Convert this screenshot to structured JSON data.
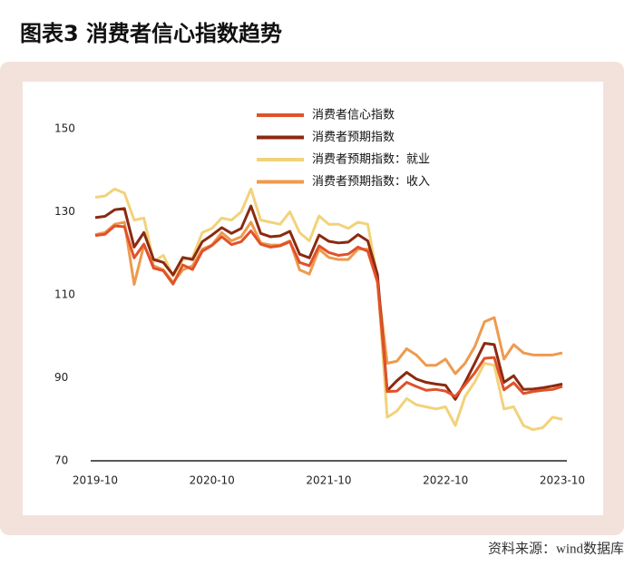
{
  "chart_data": {
    "type": "line",
    "title": "图表3  消费者信心指数趋势",
    "source": "资料来源：wind数据库",
    "categories": [
      "2019-10",
      null,
      null,
      null,
      null,
      null,
      null,
      null,
      null,
      null,
      null,
      null,
      "2020-10",
      null,
      null,
      null,
      null,
      null,
      null,
      null,
      null,
      null,
      null,
      null,
      "2021-10",
      null,
      null,
      null,
      null,
      null,
      null,
      null,
      null,
      null,
      null,
      null,
      "2022-10",
      null,
      null,
      null,
      null,
      null,
      null,
      null,
      null,
      null,
      null,
      null,
      "2023-10"
    ],
    "ylim": [
      70,
      150
    ],
    "yticks": [
      70,
      90,
      110,
      130,
      150
    ],
    "legend": "top",
    "series": [
      {
        "name": "消费者信心指数",
        "color": "#e0522a",
        "values": [
          124.3,
          124.6,
          126.6,
          126.4,
          118.9,
          122.2,
          116.4,
          115.8,
          112.6,
          117.2,
          116.1,
          120.5,
          121.9,
          124.0,
          122.1,
          122.8,
          125.4,
          122.2,
          121.5,
          121.8,
          122.8,
          117.8,
          117.0,
          121.8,
          120.2,
          119.5,
          119.8,
          121.5,
          120.5,
          113.2,
          86.7,
          86.8,
          88.9,
          87.9,
          87.0,
          87.2,
          86.8,
          85.5,
          88.3,
          91.2,
          94.7,
          94.9,
          87.1,
          88.8,
          86.2,
          86.7,
          87.0,
          87.2,
          87.9
        ]
      },
      {
        "name": "消费者预期指数",
        "color": "#8b2a10",
        "values": [
          128.6,
          128.9,
          130.5,
          130.8,
          121.5,
          125.0,
          118.5,
          117.8,
          114.8,
          119.0,
          118.5,
          122.8,
          124.4,
          126.2,
          124.8,
          126.0,
          131.4,
          124.8,
          124.0,
          124.2,
          125.3,
          119.8,
          118.9,
          124.4,
          122.9,
          122.5,
          122.7,
          124.5,
          123.0,
          114.9,
          86.9,
          89.3,
          91.3,
          89.7,
          88.9,
          88.5,
          88.2,
          84.8,
          88.9,
          93.5,
          98.3,
          98.0,
          88.9,
          90.5,
          87.2,
          87.3,
          87.6,
          88.0,
          88.5
        ]
      },
      {
        "name": "消费者预期指数：就业",
        "color": "#f2d27a",
        "values": [
          133.5,
          133.8,
          135.5,
          134.5,
          128.0,
          128.5,
          118.0,
          119.5,
          114.5,
          118.5,
          119.0,
          125.0,
          126.0,
          128.5,
          128.0,
          130.0,
          135.5,
          128.0,
          127.5,
          127.0,
          130.0,
          125.0,
          123.0,
          129.0,
          127.0,
          127.0,
          126.0,
          127.5,
          127.0,
          114.0,
          80.5,
          82.0,
          85.0,
          83.5,
          83.0,
          82.5,
          83.0,
          78.5,
          85.5,
          89.0,
          93.5,
          93.0,
          82.5,
          83.0,
          78.5,
          77.5,
          78.0,
          80.5,
          80.0
        ]
      },
      {
        "name": "消费者预期指数：收入",
        "color": "#ee9a4e",
        "values": [
          124.5,
          125.0,
          127.0,
          127.5,
          112.5,
          122.0,
          117.0,
          116.0,
          113.0,
          116.0,
          117.0,
          121.0,
          122.0,
          125.0,
          123.0,
          124.0,
          127.5,
          122.5,
          122.0,
          122.0,
          123.0,
          116.0,
          115.0,
          121.0,
          119.0,
          118.5,
          118.5,
          121.0,
          121.0,
          113.0,
          93.5,
          94.0,
          97.0,
          95.5,
          93.0,
          93.0,
          94.5,
          91.0,
          93.5,
          97.5,
          103.5,
          104.5,
          94.5,
          98.0,
          96.0,
          95.5,
          95.5,
          95.5,
          96.0
        ]
      }
    ]
  }
}
